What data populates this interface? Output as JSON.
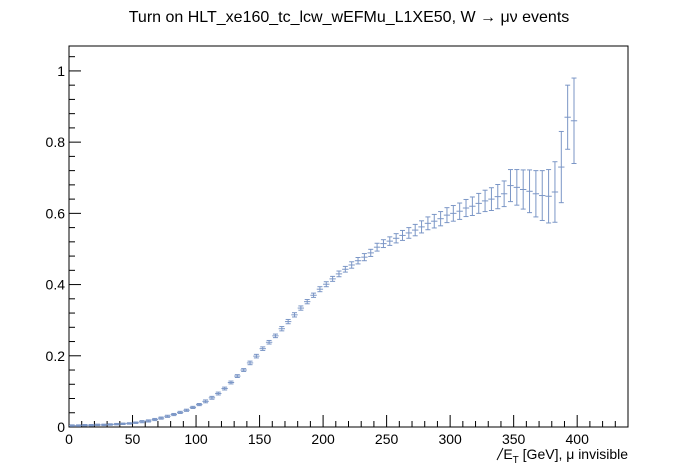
{
  "chart_data": {
    "type": "scatter",
    "title": "Turn on HLT_xe160_tc_lcw_wEFMu_L1XE50, W → μν events",
    "xlabel": "E̸T [GeV], μ invisible",
    "xlabel_parts": {
      "main": "E",
      "sub": "T",
      "rest": " [GeV], μ invisible"
    },
    "ylabel": "",
    "xlim": [
      0,
      440
    ],
    "ylim": [
      0,
      1.07
    ],
    "x_ticks": [
      0,
      50,
      100,
      150,
      200,
      250,
      300,
      350,
      400
    ],
    "x_tick_labels": [
      "0",
      "50",
      "100",
      "150",
      "200",
      "250",
      "300",
      "350",
      "400"
    ],
    "y_ticks": [
      0,
      0.2,
      0.4,
      0.6,
      0.8,
      1
    ],
    "y_tick_labels": [
      "0",
      "0.2",
      "0.4",
      "0.6",
      "0.8",
      "1"
    ],
    "grid": false,
    "legend": "none",
    "marker_color": "#7b96c6",
    "bin_half_width": 2.5,
    "series": [
      {
        "x": [
          2.5,
          7.5,
          12.5,
          17.5,
          22.5,
          27.5,
          32.5,
          37.5,
          42.5,
          47.5,
          52.5,
          57.5,
          62.5,
          67.5,
          72.5,
          77.5,
          82.5,
          87.5,
          92.5,
          97.5,
          102.5,
          107.5,
          112.5,
          117.5,
          122.5,
          127.5,
          132.5,
          137.5,
          142.5,
          147.5,
          152.5,
          157.5,
          162.5,
          167.5,
          172.5,
          177.5,
          182.5,
          187.5,
          192.5,
          197.5,
          202.5,
          207.5,
          212.5,
          217.5,
          222.5,
          227.5,
          232.5,
          237.5,
          242.5,
          247.5,
          252.5,
          257.5,
          262.5,
          267.5,
          272.5,
          277.5,
          282.5,
          287.5,
          292.5,
          297.5,
          302.5,
          307.5,
          312.5,
          317.5,
          322.5,
          327.5,
          332.5,
          337.5,
          342.5,
          347.5,
          352.5,
          357.5,
          362.5,
          367.5,
          372.5,
          377.5,
          382.5,
          387.5,
          392.5,
          397.5
        ],
        "y": [
          0.004,
          0.004,
          0.005,
          0.005,
          0.006,
          0.006,
          0.007,
          0.008,
          0.009,
          0.01,
          0.012,
          0.015,
          0.017,
          0.021,
          0.025,
          0.03,
          0.035,
          0.041,
          0.047,
          0.055,
          0.063,
          0.072,
          0.082,
          0.094,
          0.108,
          0.125,
          0.143,
          0.16,
          0.18,
          0.199,
          0.22,
          0.238,
          0.256,
          0.276,
          0.296,
          0.315,
          0.334,
          0.352,
          0.37,
          0.387,
          0.401,
          0.416,
          0.43,
          0.443,
          0.455,
          0.467,
          0.477,
          0.489,
          0.505,
          0.515,
          0.522,
          0.53,
          0.538,
          0.545,
          0.553,
          0.562,
          0.572,
          0.578,
          0.585,
          0.595,
          0.6,
          0.606,
          0.615,
          0.62,
          0.628,
          0.635,
          0.64,
          0.647,
          0.655,
          0.678,
          0.673,
          0.667,
          0.662,
          0.655,
          0.65,
          0.648,
          0.66,
          0.73,
          0.87,
          0.86
        ],
        "err": [
          0.002,
          0.002,
          0.002,
          0.002,
          0.002,
          0.002,
          0.002,
          0.002,
          0.002,
          0.002,
          0.002,
          0.003,
          0.003,
          0.003,
          0.003,
          0.003,
          0.003,
          0.003,
          0.003,
          0.003,
          0.003,
          0.004,
          0.004,
          0.004,
          0.004,
          0.004,
          0.004,
          0.004,
          0.005,
          0.005,
          0.005,
          0.005,
          0.005,
          0.006,
          0.006,
          0.006,
          0.006,
          0.006,
          0.006,
          0.007,
          0.007,
          0.007,
          0.008,
          0.008,
          0.009,
          0.009,
          0.01,
          0.01,
          0.011,
          0.011,
          0.012,
          0.013,
          0.014,
          0.015,
          0.016,
          0.017,
          0.018,
          0.019,
          0.02,
          0.021,
          0.022,
          0.023,
          0.024,
          0.026,
          0.028,
          0.03,
          0.032,
          0.034,
          0.036,
          0.045,
          0.05,
          0.055,
          0.06,
          0.065,
          0.07,
          0.075,
          0.085,
          0.1,
          0.09,
          0.12
        ]
      }
    ]
  }
}
